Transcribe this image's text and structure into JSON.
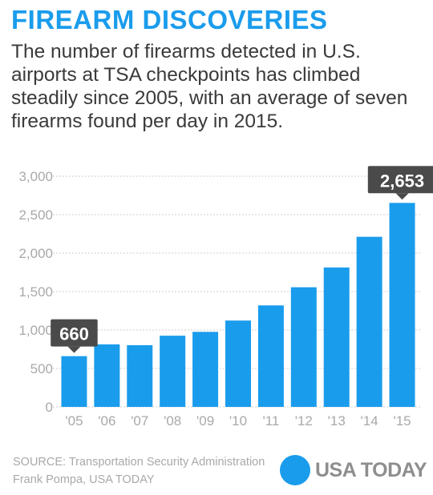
{
  "header": {
    "title": "FIREARM DISCOVERIES",
    "subtitle": "The number of firearms detected in U.S. airports at TSA checkpoints has climbed steadily since 2005, with an average of seven firearms found per day in 2015."
  },
  "chart_data": {
    "type": "bar",
    "categories": [
      "'05",
      "'06",
      "'07",
      "'08",
      "'09",
      "'10",
      "'11",
      "'12",
      "'13",
      "'14",
      "'15"
    ],
    "values": [
      660,
      813,
      803,
      926,
      976,
      1123,
      1320,
      1556,
      1813,
      2212,
      2653
    ],
    "ylim": [
      0,
      3000
    ],
    "yticks": [
      0,
      500,
      1000,
      1500,
      2000,
      2500,
      3000
    ],
    "ytick_labels": [
      "0",
      "500",
      "1,000",
      "1,500",
      "2,000",
      "2,500",
      "3,000"
    ],
    "grid": true,
    "callouts": [
      {
        "index": 0,
        "label": "660"
      },
      {
        "index": 10,
        "label": "2,653"
      }
    ],
    "colors": {
      "bar": "#1a9cec",
      "callout": "#4a4a4a",
      "grid": "#cfcfcf",
      "axis_text": "#a9a9a9"
    }
  },
  "footer": {
    "source": "SOURCE: Transportation Security Administration",
    "credit": "Frank Pompa, USA TODAY",
    "logo_text": "USA TODAY"
  }
}
